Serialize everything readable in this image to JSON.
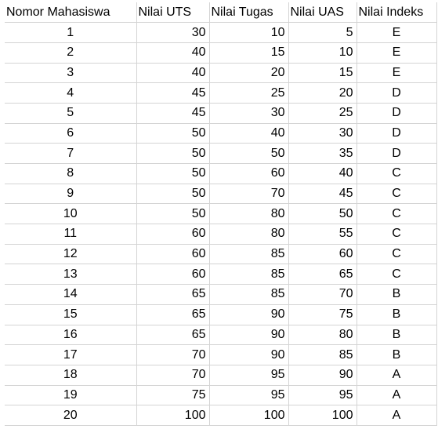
{
  "table": {
    "headers": [
      "Nomor Mahasiswa",
      "Nilai UTS",
      "Nilai Tugas",
      "Nilai UAS",
      "Nilai Indeks"
    ],
    "rows": [
      [
        "1",
        "30",
        "10",
        "5",
        "E"
      ],
      [
        "2",
        "40",
        "15",
        "10",
        "E"
      ],
      [
        "3",
        "40",
        "20",
        "15",
        "E"
      ],
      [
        "4",
        "45",
        "25",
        "20",
        "D"
      ],
      [
        "5",
        "45",
        "30",
        "25",
        "D"
      ],
      [
        "6",
        "50",
        "40",
        "30",
        "D"
      ],
      [
        "7",
        "50",
        "50",
        "35",
        "D"
      ],
      [
        "8",
        "50",
        "60",
        "40",
        "C"
      ],
      [
        "9",
        "50",
        "70",
        "45",
        "C"
      ],
      [
        "10",
        "50",
        "80",
        "50",
        "C"
      ],
      [
        "11",
        "60",
        "80",
        "55",
        "C"
      ],
      [
        "12",
        "60",
        "85",
        "60",
        "C"
      ],
      [
        "13",
        "60",
        "85",
        "65",
        "C"
      ],
      [
        "14",
        "65",
        "85",
        "70",
        "B"
      ],
      [
        "15",
        "65",
        "90",
        "75",
        "B"
      ],
      [
        "16",
        "65",
        "90",
        "80",
        "B"
      ],
      [
        "17",
        "70",
        "90",
        "85",
        "B"
      ],
      [
        "18",
        "70",
        "95",
        "90",
        "A"
      ],
      [
        "19",
        "75",
        "95",
        "95",
        "A"
      ],
      [
        "20",
        "100",
        "100",
        "100",
        "A"
      ]
    ]
  }
}
